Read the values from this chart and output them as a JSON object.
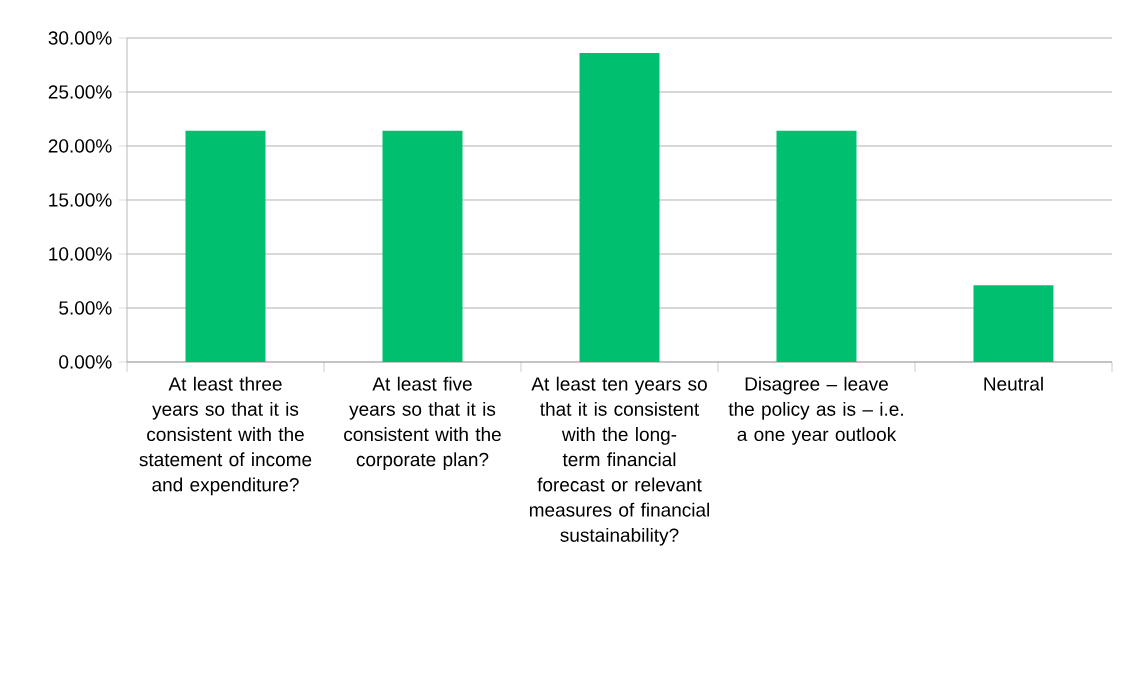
{
  "chart_data": {
    "type": "bar",
    "categories": [
      "At least three years so that it is consistent with the statement of income and expenditure?",
      "At least five years so that it is consistent with the corporate plan?",
      "At least ten years so that it is consistent with the long-term financial forecast or relevant measures of financial sustainability?",
      "Disagree – leave the policy as is – i.e. a one year outlook",
      "Neutral"
    ],
    "values": [
      21.4,
      21.4,
      28.6,
      21.4,
      7.1
    ],
    "color": "#00bf6f",
    "ylim": [
      0,
      30
    ],
    "yticks": [
      {
        "value": 0,
        "label": "0.00%"
      },
      {
        "value": 5,
        "label": "5.00%"
      },
      {
        "value": 10,
        "label": "10.00%"
      },
      {
        "value": 15,
        "label": "15.00%"
      },
      {
        "value": 20,
        "label": "20.00%"
      },
      {
        "value": 25,
        "label": "25.00%"
      },
      {
        "value": 30,
        "label": "30.00%"
      }
    ],
    "grid": "y"
  }
}
